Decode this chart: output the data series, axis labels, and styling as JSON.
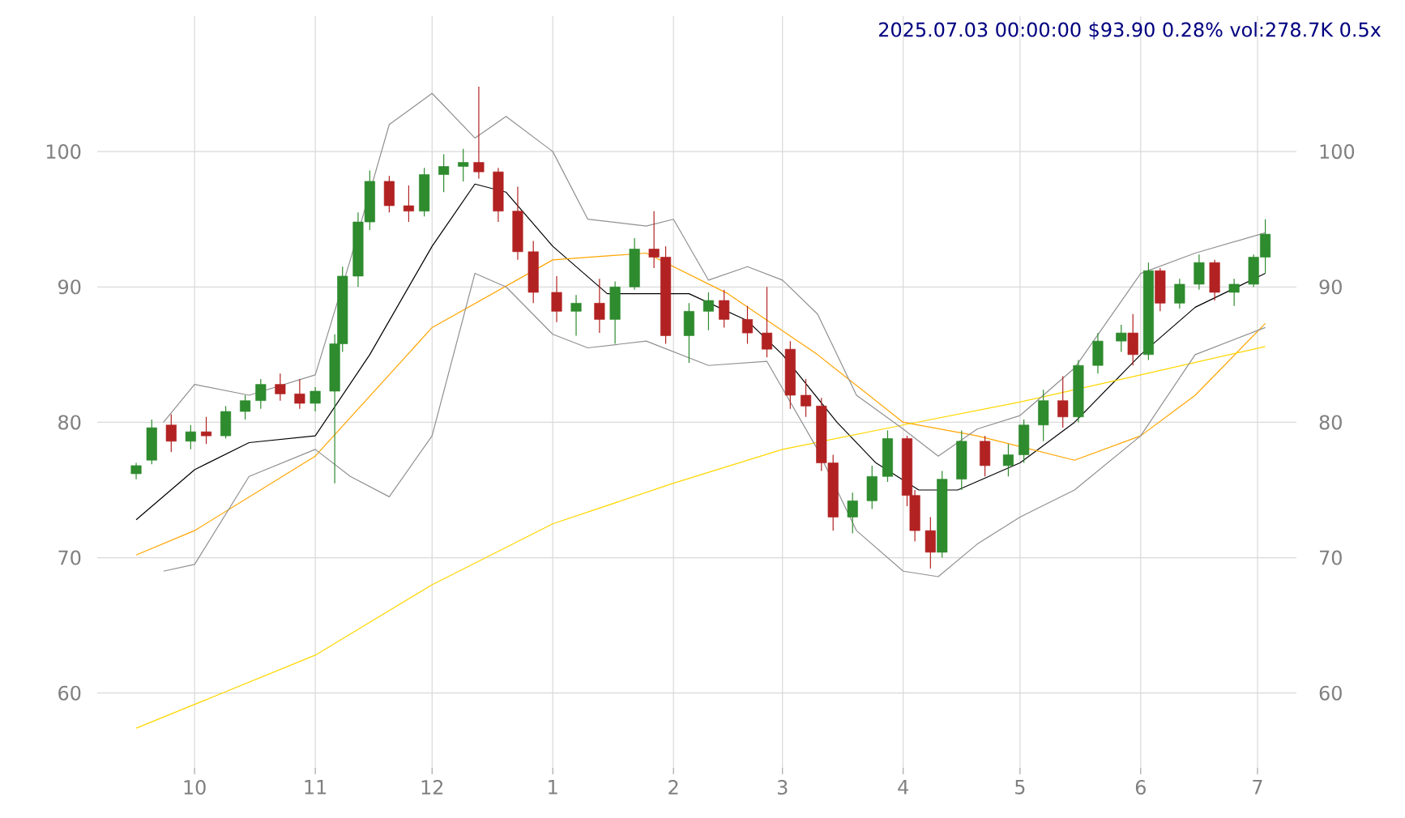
{
  "chart_data": {
    "type": "candlestick",
    "title": "2025.07.03 00:00:00 $93.90 0.28% vol:278.7K 0.5x",
    "x": [
      "2024-09-16",
      "2024-09-20",
      "2024-09-25",
      "2024-09-30",
      "2024-10-04",
      "2024-10-09",
      "2024-10-14",
      "2024-10-18",
      "2024-10-23",
      "2024-10-28",
      "2024-11-01",
      "2024-11-06",
      "2024-11-08",
      "2024-11-12",
      "2024-11-15",
      "2024-11-20",
      "2024-11-25",
      "2024-11-29",
      "2024-12-04",
      "2024-12-09",
      "2024-12-13",
      "2024-12-18",
      "2024-12-23",
      "2024-12-27",
      "2025-01-02",
      "2025-01-07",
      "2025-01-13",
      "2025-01-17",
      "2025-01-22",
      "2025-01-27",
      "2025-01-30",
      "2025-02-05",
      "2025-02-10",
      "2025-02-14",
      "2025-02-20",
      "2025-02-25",
      "2025-03-03",
      "2025-03-07",
      "2025-03-11",
      "2025-03-14",
      "2025-03-19",
      "2025-03-24",
      "2025-03-28",
      "2025-04-02",
      "2025-04-04",
      "2025-04-08",
      "2025-04-11",
      "2025-04-16",
      "2025-04-22",
      "2025-04-28",
      "2025-05-02",
      "2025-05-07",
      "2025-05-12",
      "2025-05-16",
      "2025-05-21",
      "2025-05-27",
      "2025-05-30",
      "2025-06-03",
      "2025-06-06",
      "2025-06-11",
      "2025-06-16",
      "2025-06-20",
      "2025-06-25",
      "2025-06-30",
      "2025-07-03"
    ],
    "ohlc": [
      [
        76.2,
        77.0,
        75.8,
        76.8
      ],
      [
        77.2,
        80.2,
        76.9,
        79.6
      ],
      [
        79.8,
        80.6,
        77.8,
        78.6
      ],
      [
        78.6,
        79.8,
        78.0,
        79.3
      ],
      [
        79.3,
        80.4,
        78.4,
        79.0
      ],
      [
        79.0,
        81.2,
        78.8,
        80.8
      ],
      [
        80.8,
        82.0,
        80.2,
        81.6
      ],
      [
        81.6,
        83.2,
        81.0,
        82.8
      ],
      [
        82.8,
        83.6,
        81.6,
        82.1
      ],
      [
        82.1,
        83.2,
        81.0,
        81.4
      ],
      [
        81.4,
        82.6,
        80.8,
        82.3
      ],
      [
        82.3,
        86.5,
        75.5,
        85.8
      ],
      [
        85.8,
        91.5,
        85.2,
        90.8
      ],
      [
        90.8,
        95.5,
        90.0,
        94.8
      ],
      [
        94.8,
        98.6,
        94.2,
        97.8
      ],
      [
        97.8,
        98.2,
        95.5,
        96.0
      ],
      [
        96.0,
        97.5,
        94.8,
        95.6
      ],
      [
        95.6,
        98.8,
        95.2,
        98.3
      ],
      [
        98.3,
        99.8,
        97.0,
        98.9
      ],
      [
        98.9,
        100.2,
        97.8,
        99.2
      ],
      [
        99.2,
        104.8,
        98.0,
        98.5
      ],
      [
        98.5,
        98.8,
        94.8,
        95.6
      ],
      [
        95.6,
        97.4,
        92.0,
        92.6
      ],
      [
        92.6,
        93.4,
        88.8,
        89.6
      ],
      [
        89.6,
        90.8,
        87.4,
        88.2
      ],
      [
        88.2,
        89.4,
        86.4,
        88.8
      ],
      [
        88.8,
        90.6,
        86.6,
        87.6
      ],
      [
        87.6,
        90.4,
        85.8,
        90.0
      ],
      [
        90.0,
        93.6,
        89.8,
        92.8
      ],
      [
        92.8,
        95.6,
        91.4,
        92.2
      ],
      [
        92.2,
        93.0,
        85.8,
        86.4
      ],
      [
        86.4,
        88.8,
        84.4,
        88.2
      ],
      [
        88.2,
        89.6,
        86.8,
        89.0
      ],
      [
        89.0,
        89.8,
        87.0,
        87.6
      ],
      [
        87.6,
        88.6,
        85.8,
        86.6
      ],
      [
        86.6,
        90.0,
        84.8,
        85.4
      ],
      [
        85.4,
        86.0,
        81.0,
        82.0
      ],
      [
        82.0,
        83.2,
        80.4,
        81.2
      ],
      [
        81.2,
        81.8,
        76.4,
        77.0
      ],
      [
        77.0,
        77.6,
        72.0,
        73.0
      ],
      [
        73.0,
        74.8,
        71.8,
        74.2
      ],
      [
        74.2,
        76.8,
        73.6,
        76.0
      ],
      [
        76.0,
        79.4,
        75.6,
        78.8
      ],
      [
        78.8,
        79.0,
        73.8,
        74.6
      ],
      [
        74.6,
        75.0,
        71.2,
        72.0
      ],
      [
        72.0,
        73.0,
        69.2,
        70.4
      ],
      [
        70.4,
        76.4,
        70.0,
        75.8
      ],
      [
        75.8,
        79.4,
        75.0,
        78.6
      ],
      [
        78.6,
        79.0,
        76.0,
        76.8
      ],
      [
        76.8,
        78.4,
        76.0,
        77.6
      ],
      [
        77.6,
        80.2,
        77.0,
        79.8
      ],
      [
        79.8,
        82.4,
        78.6,
        81.6
      ],
      [
        81.6,
        83.4,
        79.6,
        80.4
      ],
      [
        80.4,
        84.6,
        80.0,
        84.2
      ],
      [
        84.2,
        86.6,
        83.6,
        86.0
      ],
      [
        86.0,
        87.2,
        85.2,
        86.6
      ],
      [
        86.6,
        88.0,
        84.2,
        85.0
      ],
      [
        85.0,
        91.8,
        84.6,
        91.2
      ],
      [
        91.2,
        91.4,
        88.2,
        88.8
      ],
      [
        88.8,
        90.6,
        88.4,
        90.2
      ],
      [
        90.2,
        92.4,
        89.8,
        91.8
      ],
      [
        91.8,
        92.0,
        89.0,
        89.6
      ],
      [
        89.6,
        90.6,
        88.6,
        90.2
      ],
      [
        90.2,
        92.4,
        90.0,
        92.2
      ],
      [
        92.2,
        95.0,
        91.0,
        93.9
      ]
    ],
    "colors": [
      "#2e8b2e",
      "#2e8b2e",
      "#b22222",
      "#2e8b2e",
      "#b22222",
      "#2e8b2e",
      "#2e8b2e",
      "#2e8b2e",
      "#b22222",
      "#b22222",
      "#2e8b2e",
      "#2e8b2e",
      "#2e8b2e",
      "#2e8b2e",
      "#2e8b2e",
      "#b22222",
      "#b22222",
      "#2e8b2e",
      "#2e8b2e",
      "#2e8b2e",
      "#b22222",
      "#b22222",
      "#b22222",
      "#b22222",
      "#b22222",
      "#2e8b2e",
      "#b22222",
      "#2e8b2e",
      "#2e8b2e",
      "#b22222",
      "#b22222",
      "#2e8b2e",
      "#2e8b2e",
      "#b22222",
      "#b22222",
      "#b22222",
      "#b22222",
      "#b22222",
      "#b22222",
      "#b22222",
      "#2e8b2e",
      "#2e8b2e",
      "#2e8b2e",
      "#b22222",
      "#b22222",
      "#b22222",
      "#2e8b2e",
      "#2e8b2e",
      "#b22222",
      "#2e8b2e",
      "#2e8b2e",
      "#2e8b2e",
      "#b22222",
      "#2e8b2e",
      "#2e8b2e",
      "#2e8b2e",
      "#b22222",
      "#2e8b2e",
      "#b22222",
      "#2e8b2e",
      "#2e8b2e",
      "#b22222",
      "#2e8b2e",
      "#2e8b2e",
      "#2e8b2e"
    ],
    "series": [
      {
        "type": "line",
        "color": "#000000",
        "x": [
          "2024-09-16",
          "2024-10-01",
          "2024-10-15",
          "2024-11-01",
          "2024-11-15",
          "2024-12-01",
          "2024-12-12",
          "2024-12-20",
          "2025-01-01",
          "2025-01-15",
          "2025-01-25",
          "2025-02-05",
          "2025-02-20",
          "2025-03-01",
          "2025-03-15",
          "2025-03-25",
          "2025-04-05",
          "2025-04-15",
          "2025-05-01",
          "2025-05-15",
          "2025-06-01",
          "2025-06-15",
          "2025-07-03"
        ],
        "values": [
          72.8,
          76.5,
          78.5,
          79,
          85,
          93,
          97.6,
          97,
          93,
          89.5,
          89.5,
          89.5,
          87.5,
          85,
          80,
          77,
          75,
          75,
          77,
          80,
          85,
          88.5,
          91
        ]
      },
      {
        "type": "line",
        "color": "#ffa500",
        "x": [
          "2024-09-16",
          "2024-10-01",
          "2024-11-01",
          "2024-12-01",
          "2025-01-01",
          "2025-01-25",
          "2025-02-15",
          "2025-03-10",
          "2025-04-01",
          "2025-04-20",
          "2025-05-15",
          "2025-06-01",
          "2025-06-15",
          "2025-07-03"
        ],
        "values": [
          70.2,
          72,
          77.5,
          87,
          92,
          92.5,
          89.5,
          85,
          80,
          79,
          77.2,
          79,
          82,
          87.3
        ]
      },
      {
        "type": "line",
        "color": "#ffd700",
        "x": [
          "2024-09-16",
          "2024-11-01",
          "2024-12-01",
          "2025-01-01",
          "2025-02-01",
          "2025-03-01",
          "2025-04-01",
          "2025-05-01",
          "2025-06-01",
          "2025-07-03"
        ],
        "values": [
          57.4,
          62.8,
          68,
          72.5,
          75.5,
          78,
          79.8,
          81.5,
          83.5,
          85.6
        ]
      },
      {
        "type": "line",
        "color": "#909090",
        "x": [
          "2024-09-23",
          "2024-10-01",
          "2024-10-15",
          "2024-11-01",
          "2024-11-10",
          "2024-11-20",
          "2024-12-01",
          "2024-12-12",
          "2024-12-20",
          "2025-01-01",
          "2025-01-10",
          "2025-01-25",
          "2025-02-01",
          "2025-02-10",
          "2025-02-20",
          "2025-03-01",
          "2025-03-10",
          "2025-03-20",
          "2025-04-01",
          "2025-04-10",
          "2025-04-20",
          "2025-05-01",
          "2025-05-15",
          "2025-06-01",
          "2025-06-15",
          "2025-07-03"
        ],
        "values": [
          80,
          82.8,
          82,
          83.5,
          92,
          102,
          104.3,
          101,
          102.6,
          100,
          95,
          94.5,
          95,
          90.5,
          91.5,
          90.5,
          88,
          82,
          79.5,
          77.5,
          79.5,
          80.5,
          84,
          91,
          92.5,
          94
        ]
      },
      {
        "type": "line",
        "color": "#909090",
        "x": [
          "2024-09-23",
          "2024-10-01",
          "2024-10-15",
          "2024-11-01",
          "2024-11-10",
          "2024-11-20",
          "2024-12-01",
          "2024-12-12",
          "2024-12-20",
          "2025-01-01",
          "2025-01-10",
          "2025-01-25",
          "2025-02-10",
          "2025-02-25",
          "2025-03-10",
          "2025-03-20",
          "2025-04-01",
          "2025-04-10",
          "2025-04-20",
          "2025-05-01",
          "2025-05-15",
          "2025-06-01",
          "2025-06-15",
          "2025-07-03"
        ],
        "values": [
          69,
          69.5,
          76,
          78,
          76,
          74.5,
          79,
          91,
          90,
          86.5,
          85.5,
          86,
          84.2,
          84.5,
          78,
          72,
          69,
          68.6,
          71,
          73,
          75,
          79,
          85,
          87
        ]
      }
    ],
    "xlim": [
      "2024-09-06",
      "2025-07-11"
    ],
    "xticks": [
      {
        "value": "2024-10-01",
        "label": "10"
      },
      {
        "value": "2024-11-01",
        "label": "11"
      },
      {
        "value": "2024-12-01",
        "label": "12"
      },
      {
        "value": "2025-01-01",
        "label": "1"
      },
      {
        "value": "2025-02-01",
        "label": "2"
      },
      {
        "value": "2025-03-01",
        "label": "3"
      },
      {
        "value": "2025-04-01",
        "label": "4"
      },
      {
        "value": "2025-05-01",
        "label": "5"
      },
      {
        "value": "2025-06-01",
        "label": "6"
      },
      {
        "value": "2025-07-01",
        "label": "7"
      }
    ],
    "ylim": [
      54,
      110
    ],
    "yticks": [
      60,
      70,
      80,
      90,
      100
    ],
    "y2lim": [
      54,
      110
    ],
    "y2ticks": [
      60,
      70,
      80,
      90,
      100
    ],
    "grid": true
  }
}
